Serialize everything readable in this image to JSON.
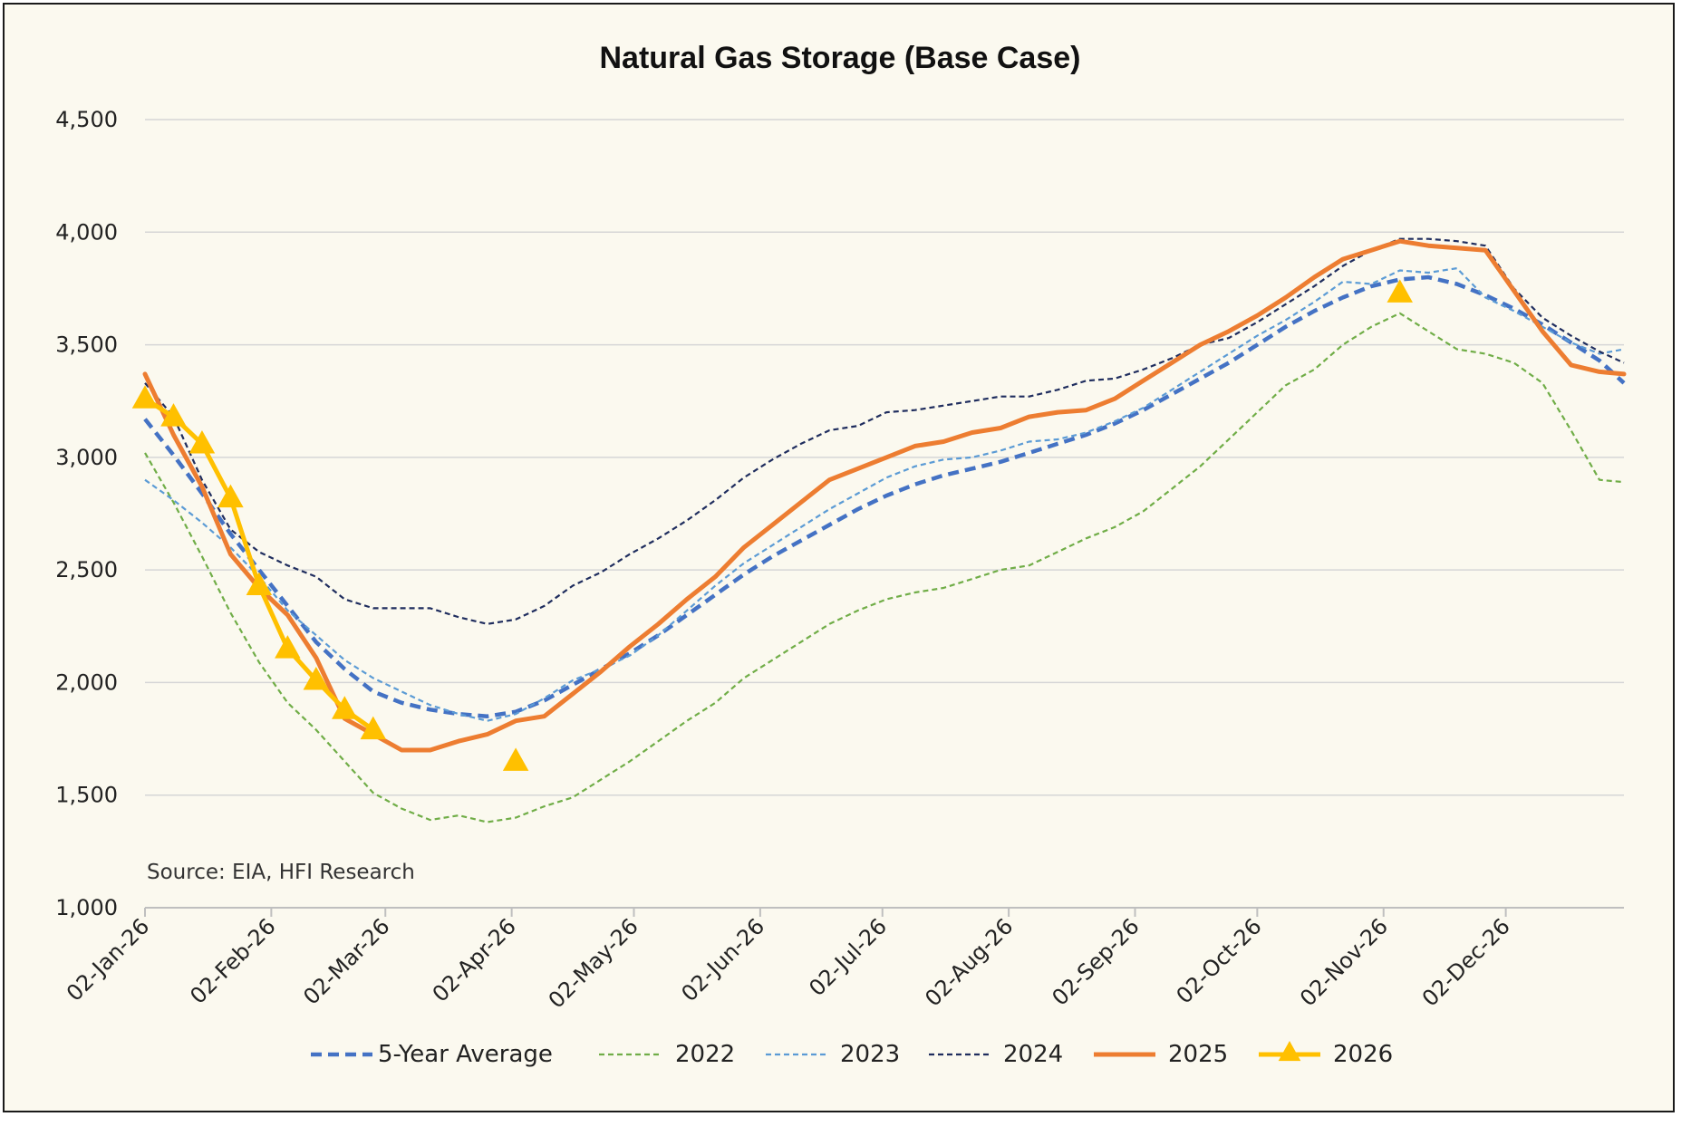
{
  "chart_data": {
    "type": "line",
    "title": "Natural Gas Storage (Base Case)",
    "source": "Source: EIA, HFI Research",
    "xlabel": "",
    "ylabel": "",
    "ylim": [
      1000,
      4500
    ],
    "yticks": [
      1000,
      1500,
      2000,
      2500,
      3000,
      3500,
      4000,
      4500
    ],
    "ytick_labels": [
      "1,000",
      "1,500",
      "2,000",
      "2,500",
      "3,000",
      "3,500",
      "4,000",
      "4,500"
    ],
    "xlim": [
      "2026-01-02",
      "2026-12-31"
    ],
    "xtick_dates": [
      "2026-01-02",
      "2026-02-02",
      "2026-03-02",
      "2026-04-02",
      "2026-05-02",
      "2026-06-02",
      "2026-07-02",
      "2026-08-02",
      "2026-09-02",
      "2026-10-02",
      "2026-11-02",
      "2026-12-02"
    ],
    "xtick_labels": [
      "02-Jan-26",
      "02-Feb-26",
      "02-Mar-26",
      "02-Apr-26",
      "02-May-26",
      "02-Jun-26",
      "02-Jul-26",
      "02-Aug-26",
      "02-Sep-26",
      "02-Oct-26",
      "02-Nov-26",
      "02-Dec-26"
    ],
    "grid": true,
    "legend_position": "bottom",
    "series": [
      {
        "name": "5-Year Average",
        "color": "#4472c4",
        "style": "dashed-thick",
        "x": [
          "2026-01-02",
          "2026-01-09",
          "2026-01-16",
          "2026-01-23",
          "2026-01-30",
          "2026-02-06",
          "2026-02-13",
          "2026-02-20",
          "2026-02-27",
          "2026-03-06",
          "2026-03-13",
          "2026-03-20",
          "2026-03-27",
          "2026-04-03",
          "2026-04-10",
          "2026-04-17",
          "2026-04-24",
          "2026-05-01",
          "2026-05-08",
          "2026-05-15",
          "2026-05-22",
          "2026-05-29",
          "2026-06-05",
          "2026-06-12",
          "2026-06-19",
          "2026-06-26",
          "2026-07-03",
          "2026-07-10",
          "2026-07-17",
          "2026-07-24",
          "2026-07-31",
          "2026-08-07",
          "2026-08-14",
          "2026-08-21",
          "2026-08-28",
          "2026-09-04",
          "2026-09-11",
          "2026-09-18",
          "2026-09-25",
          "2026-10-02",
          "2026-10-09",
          "2026-10-16",
          "2026-10-23",
          "2026-10-30",
          "2026-11-06",
          "2026-11-13",
          "2026-11-20",
          "2026-11-27",
          "2026-12-04",
          "2026-12-11",
          "2026-12-18",
          "2026-12-25",
          "2026-12-31"
        ],
        "y": [
          3170,
          3010,
          2840,
          2660,
          2500,
          2340,
          2180,
          2060,
          1960,
          1910,
          1880,
          1860,
          1850,
          1870,
          1920,
          1990,
          2060,
          2130,
          2210,
          2300,
          2390,
          2480,
          2560,
          2630,
          2700,
          2770,
          2830,
          2880,
          2920,
          2950,
          2980,
          3020,
          3060,
          3100,
          3150,
          3210,
          3280,
          3350,
          3420,
          3500,
          3580,
          3650,
          3710,
          3760,
          3790,
          3800,
          3770,
          3720,
          3660,
          3590,
          3510,
          3430,
          3330
        ]
      },
      {
        "name": "2022",
        "color": "#70ad47",
        "style": "dashed-thin",
        "x": [
          "2026-01-02",
          "2026-01-09",
          "2026-01-16",
          "2026-01-23",
          "2026-01-30",
          "2026-02-06",
          "2026-02-13",
          "2026-02-20",
          "2026-02-27",
          "2026-03-06",
          "2026-03-13",
          "2026-03-20",
          "2026-03-27",
          "2026-04-03",
          "2026-04-10",
          "2026-04-17",
          "2026-04-24",
          "2026-05-01",
          "2026-05-08",
          "2026-05-15",
          "2026-05-22",
          "2026-05-29",
          "2026-06-05",
          "2026-06-12",
          "2026-06-19",
          "2026-06-26",
          "2026-07-03",
          "2026-07-10",
          "2026-07-17",
          "2026-07-24",
          "2026-07-31",
          "2026-08-07",
          "2026-08-14",
          "2026-08-21",
          "2026-08-28",
          "2026-09-04",
          "2026-09-11",
          "2026-09-18",
          "2026-09-25",
          "2026-10-02",
          "2026-10-09",
          "2026-10-16",
          "2026-10-23",
          "2026-10-30",
          "2026-11-06",
          "2026-11-13",
          "2026-11-20",
          "2026-11-27",
          "2026-12-04",
          "2026-12-11",
          "2026-12-18",
          "2026-12-25",
          "2026-12-31"
        ],
        "y": [
          3020,
          2800,
          2560,
          2310,
          2090,
          1910,
          1790,
          1650,
          1510,
          1440,
          1390,
          1410,
          1380,
          1400,
          1450,
          1490,
          1570,
          1650,
          1740,
          1830,
          1910,
          2020,
          2100,
          2180,
          2260,
          2320,
          2370,
          2400,
          2420,
          2460,
          2500,
          2520,
          2580,
          2640,
          2690,
          2760,
          2860,
          2960,
          3080,
          3200,
          3320,
          3390,
          3500,
          3580,
          3640,
          3560,
          3480,
          3460,
          3420,
          3330,
          3120,
          2900,
          2890
        ]
      },
      {
        "name": "2023",
        "color": "#5b9bd5",
        "style": "dashed-thin",
        "x": [
          "2026-01-02",
          "2026-01-09",
          "2026-01-16",
          "2026-01-23",
          "2026-01-30",
          "2026-02-06",
          "2026-02-13",
          "2026-02-20",
          "2026-02-27",
          "2026-03-06",
          "2026-03-13",
          "2026-03-20",
          "2026-03-27",
          "2026-04-03",
          "2026-04-10",
          "2026-04-17",
          "2026-04-24",
          "2026-05-01",
          "2026-05-08",
          "2026-05-15",
          "2026-05-22",
          "2026-05-29",
          "2026-06-05",
          "2026-06-12",
          "2026-06-19",
          "2026-06-26",
          "2026-07-03",
          "2026-07-10",
          "2026-07-17",
          "2026-07-24",
          "2026-07-31",
          "2026-08-07",
          "2026-08-14",
          "2026-08-21",
          "2026-08-28",
          "2026-09-04",
          "2026-09-11",
          "2026-09-18",
          "2026-09-25",
          "2026-10-02",
          "2026-10-09",
          "2026-10-16",
          "2026-10-23",
          "2026-10-30",
          "2026-11-06",
          "2026-11-13",
          "2026-11-20",
          "2026-11-27",
          "2026-12-04",
          "2026-12-11",
          "2026-12-18",
          "2026-12-25",
          "2026-12-31"
        ],
        "y": [
          2900,
          2810,
          2710,
          2600,
          2470,
          2320,
          2210,
          2100,
          2020,
          1960,
          1900,
          1860,
          1830,
          1860,
          1930,
          2010,
          2060,
          2120,
          2210,
          2320,
          2430,
          2530,
          2610,
          2690,
          2770,
          2840,
          2910,
          2960,
          2990,
          3000,
          3030,
          3070,
          3080,
          3110,
          3160,
          3220,
          3300,
          3380,
          3460,
          3540,
          3610,
          3690,
          3780,
          3770,
          3830,
          3820,
          3840,
          3710,
          3650,
          3580,
          3510,
          3460,
          3480
        ]
      },
      {
        "name": "2024",
        "color": "#1f2d5e",
        "style": "dashed-thin",
        "x": [
          "2026-01-02",
          "2026-01-09",
          "2026-01-16",
          "2026-01-23",
          "2026-01-30",
          "2026-02-06",
          "2026-02-13",
          "2026-02-20",
          "2026-02-27",
          "2026-03-06",
          "2026-03-13",
          "2026-03-20",
          "2026-03-27",
          "2026-04-03",
          "2026-04-10",
          "2026-04-17",
          "2026-04-24",
          "2026-05-01",
          "2026-05-08",
          "2026-05-15",
          "2026-05-22",
          "2026-05-29",
          "2026-06-05",
          "2026-06-12",
          "2026-06-19",
          "2026-06-26",
          "2026-07-03",
          "2026-07-10",
          "2026-07-17",
          "2026-07-24",
          "2026-07-31",
          "2026-08-07",
          "2026-08-14",
          "2026-08-21",
          "2026-08-28",
          "2026-09-04",
          "2026-09-11",
          "2026-09-18",
          "2026-09-25",
          "2026-10-02",
          "2026-10-09",
          "2026-10-16",
          "2026-10-23",
          "2026-10-30",
          "2026-11-06",
          "2026-11-13",
          "2026-11-20",
          "2026-11-27",
          "2026-12-04",
          "2026-12-11",
          "2026-12-18",
          "2026-12-25",
          "2026-12-31"
        ],
        "y": [
          3330,
          3180,
          2900,
          2680,
          2580,
          2520,
          2470,
          2370,
          2330,
          2330,
          2330,
          2290,
          2260,
          2280,
          2340,
          2430,
          2490,
          2570,
          2640,
          2720,
          2810,
          2910,
          2990,
          3060,
          3120,
          3140,
          3200,
          3210,
          3230,
          3250,
          3270,
          3270,
          3300,
          3340,
          3350,
          3390,
          3440,
          3500,
          3530,
          3600,
          3680,
          3760,
          3850,
          3920,
          3970,
          3970,
          3960,
          3940,
          3750,
          3620,
          3540,
          3470,
          3420
        ]
      },
      {
        "name": "2025",
        "color": "#ed7d31",
        "style": "solid",
        "x": [
          "2026-01-02",
          "2026-01-09",
          "2026-01-16",
          "2026-01-23",
          "2026-01-30",
          "2026-02-06",
          "2026-02-13",
          "2026-02-20",
          "2026-02-27",
          "2026-03-06",
          "2026-03-13",
          "2026-03-20",
          "2026-03-27",
          "2026-04-03",
          "2026-04-10",
          "2026-04-17",
          "2026-04-24",
          "2026-05-01",
          "2026-05-08",
          "2026-05-15",
          "2026-05-22",
          "2026-05-29",
          "2026-06-05",
          "2026-06-12",
          "2026-06-19",
          "2026-06-26",
          "2026-07-03",
          "2026-07-10",
          "2026-07-17",
          "2026-07-24",
          "2026-07-31",
          "2026-08-07",
          "2026-08-14",
          "2026-08-21",
          "2026-08-28",
          "2026-09-04",
          "2026-09-11",
          "2026-09-18",
          "2026-09-25",
          "2026-10-02",
          "2026-10-09",
          "2026-10-16",
          "2026-10-23",
          "2026-10-30",
          "2026-11-06",
          "2026-11-13",
          "2026-11-20",
          "2026-11-27",
          "2026-12-04",
          "2026-12-11",
          "2026-12-18",
          "2026-12-25",
          "2026-12-31"
        ],
        "y": [
          3370,
          3100,
          2870,
          2570,
          2420,
          2300,
          2110,
          1840,
          1770,
          1700,
          1700,
          1740,
          1770,
          1830,
          1850,
          1950,
          2050,
          2160,
          2260,
          2370,
          2470,
          2600,
          2700,
          2800,
          2900,
          2950,
          3000,
          3050,
          3070,
          3110,
          3130,
          3180,
          3200,
          3210,
          3260,
          3340,
          3420,
          3500,
          3560,
          3630,
          3710,
          3800,
          3880,
          3920,
          3960,
          3940,
          3930,
          3920,
          3740,
          3560,
          3410,
          3380,
          3370
        ]
      },
      {
        "name": "2026",
        "color": "#ffc000",
        "style": "solid-triangle",
        "x": [
          "2026-01-02",
          "2026-01-09",
          "2026-01-16",
          "2026-01-23",
          "2026-01-30",
          "2026-02-06",
          "2026-02-13",
          "2026-02-20",
          "2026-02-27",
          "2026-04-03",
          "2026-11-06"
        ],
        "y": [
          3260,
          3180,
          3060,
          2820,
          2430,
          2150,
          2010,
          1880,
          1790,
          1650,
          3730
        ],
        "line_break_after_index": 8
      }
    ]
  }
}
